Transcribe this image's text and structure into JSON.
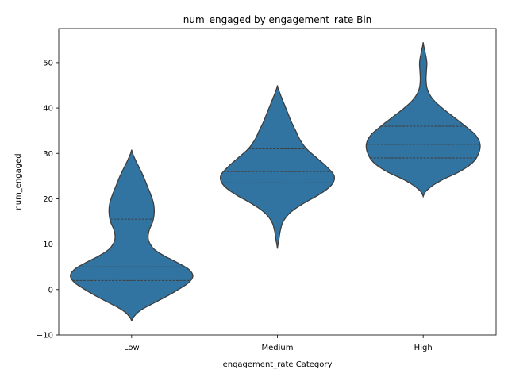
{
  "chart_data": {
    "type": "violin",
    "title": "num_engaged by engagement_rate Bin",
    "xlabel": "engagement_rate Category",
    "ylabel": "num_engaged",
    "categories": [
      "Low",
      "Medium",
      "High"
    ],
    "ylim": [
      -10,
      57.5
    ],
    "yticks": [
      -10,
      0,
      10,
      20,
      30,
      40,
      50
    ],
    "grid": false,
    "color": "#3274a1",
    "edge_color": "#3d3d3d",
    "violins": [
      {
        "category": "Low",
        "quartiles": [
          2,
          5,
          15.5
        ],
        "range": [
          -7,
          30.8
        ],
        "profile": [
          {
            "y": -7,
            "w": 0.0
          },
          {
            "y": -6,
            "w": 0.015
          },
          {
            "y": -4.5,
            "w": 0.065
          },
          {
            "y": -3,
            "w": 0.15
          },
          {
            "y": -1.5,
            "w": 0.24
          },
          {
            "y": 0,
            "w": 0.32
          },
          {
            "y": 1.5,
            "w": 0.39
          },
          {
            "y": 3,
            "w": 0.42
          },
          {
            "y": 4.5,
            "w": 0.39
          },
          {
            "y": 6,
            "w": 0.31
          },
          {
            "y": 7.5,
            "w": 0.22
          },
          {
            "y": 9,
            "w": 0.15
          },
          {
            "y": 11,
            "w": 0.115
          },
          {
            "y": 13,
            "w": 0.12
          },
          {
            "y": 15,
            "w": 0.145
          },
          {
            "y": 17,
            "w": 0.155
          },
          {
            "y": 19,
            "w": 0.15
          },
          {
            "y": 21,
            "w": 0.13
          },
          {
            "y": 23,
            "w": 0.105
          },
          {
            "y": 25,
            "w": 0.08
          },
          {
            "y": 27,
            "w": 0.05
          },
          {
            "y": 29,
            "w": 0.02
          },
          {
            "y": 30.8,
            "w": 0.0
          }
        ]
      },
      {
        "category": "Medium",
        "quartiles": [
          23.5,
          26,
          31
        ],
        "range": [
          9,
          45
        ],
        "profile": [
          {
            "y": 9,
            "w": 0.0
          },
          {
            "y": 11,
            "w": 0.01
          },
          {
            "y": 13,
            "w": 0.02
          },
          {
            "y": 15,
            "w": 0.04
          },
          {
            "y": 17,
            "w": 0.09
          },
          {
            "y": 19,
            "w": 0.18
          },
          {
            "y": 21,
            "w": 0.29
          },
          {
            "y": 23,
            "w": 0.37
          },
          {
            "y": 25,
            "w": 0.39
          },
          {
            "y": 27,
            "w": 0.34
          },
          {
            "y": 29,
            "w": 0.27
          },
          {
            "y": 31,
            "w": 0.2
          },
          {
            "y": 33,
            "w": 0.155
          },
          {
            "y": 35,
            "w": 0.125
          },
          {
            "y": 37,
            "w": 0.095
          },
          {
            "y": 39,
            "w": 0.07
          },
          {
            "y": 41,
            "w": 0.045
          },
          {
            "y": 43,
            "w": 0.02
          },
          {
            "y": 45,
            "w": 0.0
          }
        ]
      },
      {
        "category": "High",
        "quartiles": [
          29,
          32,
          36
        ],
        "range": [
          20.5,
          54.5
        ],
        "profile": [
          {
            "y": 20.5,
            "w": 0.0
          },
          {
            "y": 22,
            "w": 0.03
          },
          {
            "y": 24,
            "w": 0.12
          },
          {
            "y": 26,
            "w": 0.25
          },
          {
            "y": 28,
            "w": 0.34
          },
          {
            "y": 30,
            "w": 0.38
          },
          {
            "y": 32,
            "w": 0.39
          },
          {
            "y": 34,
            "w": 0.36
          },
          {
            "y": 36,
            "w": 0.29
          },
          {
            "y": 38,
            "w": 0.21
          },
          {
            "y": 40,
            "w": 0.13
          },
          {
            "y": 42,
            "w": 0.065
          },
          {
            "y": 44,
            "w": 0.03
          },
          {
            "y": 46,
            "w": 0.02
          },
          {
            "y": 48,
            "w": 0.022
          },
          {
            "y": 50,
            "w": 0.025
          },
          {
            "y": 52,
            "w": 0.015
          },
          {
            "y": 54.5,
            "w": 0.0
          }
        ]
      }
    ]
  }
}
